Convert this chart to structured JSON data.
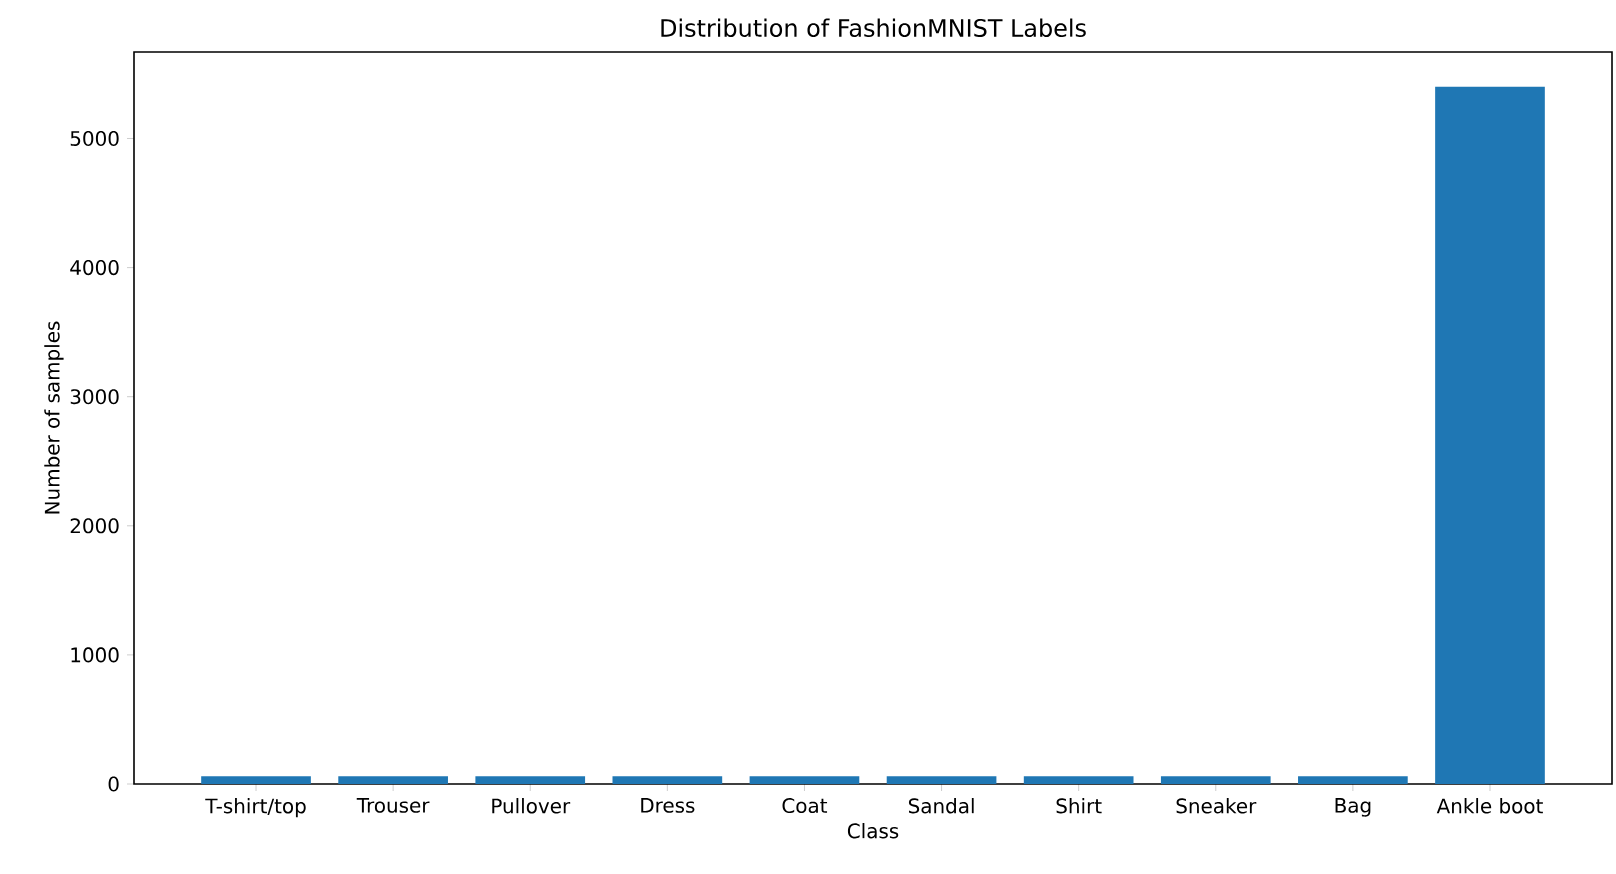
{
  "chart_data": {
    "type": "bar",
    "title": "Distribution of FashionMNIST Labels",
    "xlabel": "Class",
    "ylabel": "Number of samples",
    "categories": [
      "T-shirt/top",
      "Trouser",
      "Pullover",
      "Dress",
      "Coat",
      "Sandal",
      "Shirt",
      "Sneaker",
      "Bag",
      "Ankle boot"
    ],
    "values": [
      60,
      60,
      60,
      60,
      60,
      60,
      60,
      60,
      60,
      5400
    ],
    "color": "#1f77b4",
    "ylim": [
      0,
      5670
    ],
    "yticks": [
      0,
      1000,
      2000,
      3000,
      4000,
      5000
    ],
    "grid": false
  }
}
